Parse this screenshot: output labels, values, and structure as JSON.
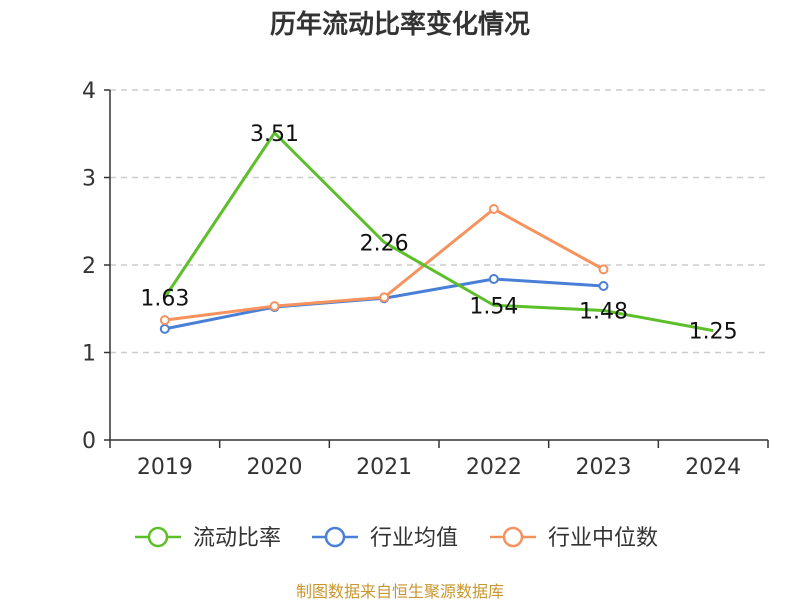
{
  "title": "历年流动比率变化情况",
  "source_note": "制图数据来自恒生聚源数据库",
  "chart_data": {
    "type": "line",
    "title": "历年流动比率变化情况",
    "categories": [
      "2019",
      "2020",
      "2021",
      "2022",
      "2023",
      "2024"
    ],
    "ylim": [
      0,
      4
    ],
    "yticks": [
      "0",
      "1",
      "2",
      "3",
      "4"
    ],
    "grid": true,
    "legend_position": "bottom",
    "series": [
      {
        "name": "流动比率",
        "color": "#5cbf2a",
        "values": [
          1.63,
          3.51,
          2.26,
          1.54,
          1.48,
          1.25
        ],
        "labels": [
          "1.63",
          "3.51",
          "2.26",
          "1.54",
          "1.48",
          "1.25"
        ]
      },
      {
        "name": "行业均值",
        "color": "#4a7fd6",
        "values": [
          1.27,
          1.52,
          1.62,
          1.84,
          1.76,
          null
        ]
      },
      {
        "name": "行业中位数",
        "color": "#f5925e",
        "values": [
          1.37,
          1.53,
          1.63,
          2.64,
          1.95,
          null
        ]
      }
    ]
  }
}
